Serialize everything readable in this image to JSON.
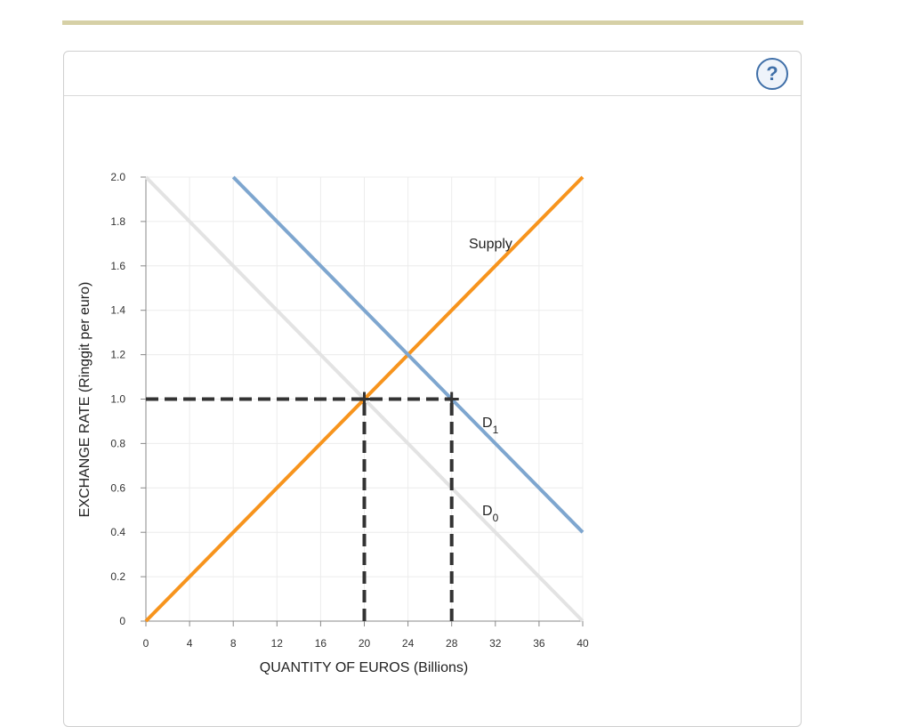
{
  "help": {
    "icon": "question-mark-icon",
    "label": "?"
  },
  "chart_data": {
    "type": "line",
    "xlabel": "QUANTITY OF EUROS (Billions)",
    "ylabel": "EXCHANGE RATE (Ringgit per euro)",
    "xlim": [
      0,
      40
    ],
    "ylim": [
      0,
      2.0
    ],
    "x_ticks": [
      0,
      4,
      8,
      12,
      16,
      20,
      24,
      28,
      32,
      36,
      40
    ],
    "y_ticks": [
      "0",
      "0.2",
      "0.4",
      "0.6",
      "0.8",
      "1.0",
      "1.2",
      "1.4",
      "1.6",
      "1.8",
      "2.0"
    ],
    "grid": true,
    "series": [
      {
        "name": "Supply",
        "color": "#f7941d",
        "points": [
          [
            0,
            0
          ],
          [
            40,
            2.0
          ]
        ],
        "label": "Supply",
        "label_sub": ""
      },
      {
        "name": "D0",
        "color": "#e3e3e3",
        "points": [
          [
            0,
            2.0
          ],
          [
            40,
            0
          ]
        ],
        "label": "D",
        "label_sub": "0"
      },
      {
        "name": "D1",
        "color": "#7ea6cf",
        "points": [
          [
            8,
            2.0
          ],
          [
            40,
            0.4
          ]
        ],
        "label": "D",
        "label_sub": "1"
      }
    ],
    "reference_lines": [
      {
        "points": [
          [
            0,
            1.0
          ],
          [
            28,
            1.0
          ]
        ],
        "style": "dashed",
        "color": "#333333"
      },
      {
        "points": [
          [
            20,
            0
          ],
          [
            20,
            1.0
          ]
        ],
        "style": "dashed",
        "color": "#333333"
      },
      {
        "points": [
          [
            28,
            0
          ],
          [
            28,
            1.0
          ]
        ],
        "style": "dashed",
        "color": "#333333"
      }
    ],
    "markers": [
      {
        "x": 20,
        "y": 1.0,
        "shape": "cross"
      },
      {
        "x": 28,
        "y": 1.0,
        "shape": "cross"
      }
    ]
  }
}
